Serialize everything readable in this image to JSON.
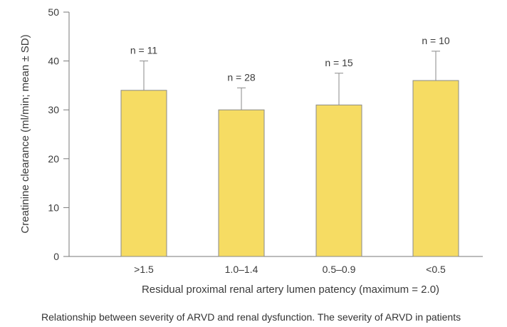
{
  "chart_data": {
    "type": "bar",
    "categories": [
      ">1.5",
      "1.0–1.4",
      "0.5–0.9",
      "<0.5"
    ],
    "values": [
      34,
      30,
      31,
      36
    ],
    "error_upper": [
      40,
      34.5,
      37.5,
      42
    ],
    "n_labels": [
      "n = 11",
      "n = 28",
      "n = 15",
      "n = 10"
    ],
    "xlabel": "Residual proximal renal artery lumen patency (maximum = 2.0)",
    "ylabel": "Creatinine clearance (ml/min; mean ± SD)",
    "ylim": [
      0,
      50
    ],
    "yticks": [
      0,
      10,
      20,
      30,
      40,
      50
    ],
    "bar_color": "#f6dc63",
    "bar_edge_color": "#8a8a8a",
    "grid": false
  },
  "caption": "Relationship between severity of ARVD and renal dysfunction. The severity of ARVD in patients"
}
